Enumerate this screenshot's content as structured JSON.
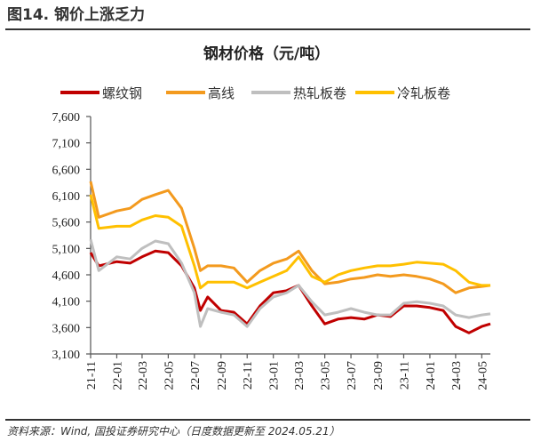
{
  "figure_title": "图14. 钢价上涨乏力",
  "source_note": "资料来源：Wind, 国投证券研究中心（日度数据更新至 2024.05.21）",
  "chart_data": {
    "type": "line",
    "title": "钢材价格（元/吨）",
    "xlabel": "",
    "ylabel": "",
    "ylim": [
      3100,
      7600
    ],
    "yticks": [
      3100,
      3600,
      4100,
      4600,
      5100,
      5600,
      6100,
      6600,
      7100,
      7600
    ],
    "ytick_labels": [
      "3,100",
      "3,600",
      "4,100",
      "4,600",
      "5,100",
      "5,600",
      "6,100",
      "6,600",
      "7,100",
      "7,600"
    ],
    "xlim": [
      "2021-11-01",
      "2024-05-21"
    ],
    "xticks": [
      "2021-11-01",
      "2022-01-01",
      "2022-03-01",
      "2022-05-01",
      "2022-07-01",
      "2022-09-01",
      "2022-11-01",
      "2023-01-01",
      "2023-03-01",
      "2023-05-01",
      "2023-07-01",
      "2023-09-01",
      "2023-11-01",
      "2024-01-01",
      "2024-03-01",
      "2024-05-01"
    ],
    "xtick_labels": [
      "21-11",
      "22-01",
      "22-03",
      "22-05",
      "22-07",
      "22-09",
      "22-11",
      "23-01",
      "23-03",
      "23-05",
      "23-07",
      "23-09",
      "23-11",
      "24-01",
      "24-03",
      "24-05"
    ],
    "grid": false,
    "legend_position": "top",
    "x": [
      "2021-11-01",
      "2021-11-20",
      "2022-01-01",
      "2022-02-01",
      "2022-03-01",
      "2022-04-01",
      "2022-05-01",
      "2022-06-01",
      "2022-07-01",
      "2022-07-15",
      "2022-08-01",
      "2022-09-01",
      "2022-10-01",
      "2022-11-01",
      "2022-12-01",
      "2023-01-01",
      "2023-02-01",
      "2023-03-01",
      "2023-04-01",
      "2023-05-01",
      "2023-06-01",
      "2023-07-01",
      "2023-08-01",
      "2023-09-01",
      "2023-10-01",
      "2023-11-01",
      "2023-12-01",
      "2024-01-01",
      "2024-02-01",
      "2024-03-01",
      "2024-04-01",
      "2024-05-01",
      "2024-05-21"
    ],
    "series": [
      {
        "name": "螺纹钢",
        "color": "#C00000",
        "values": [
          5020,
          4770,
          4850,
          4820,
          4940,
          5050,
          5020,
          4770,
          4350,
          3925,
          4180,
          3925,
          3890,
          3670,
          4010,
          4260,
          4300,
          4400,
          4010,
          3670,
          3760,
          3790,
          3760,
          3840,
          3810,
          4010,
          4010,
          3980,
          3925,
          3620,
          3500,
          3620,
          3670
        ]
      },
      {
        "name": "高线",
        "color": "#F39A1E",
        "values": [
          6370,
          5690,
          5810,
          5860,
          6030,
          6120,
          6200,
          5860,
          5100,
          4680,
          4770,
          4770,
          4730,
          4460,
          4680,
          4820,
          4900,
          5050,
          4680,
          4430,
          4460,
          4520,
          4550,
          4600,
          4570,
          4600,
          4570,
          4520,
          4430,
          4260,
          4350,
          4380,
          4400
        ]
      },
      {
        "name": "热轧板卷",
        "color": "#BFBFBF",
        "values": [
          5270,
          4680,
          4940,
          4900,
          5100,
          5240,
          5190,
          4820,
          4260,
          3620,
          3960,
          3890,
          3840,
          3620,
          3960,
          4180,
          4260,
          4400,
          4090,
          3840,
          3890,
          3960,
          3890,
          3840,
          3840,
          4060,
          4090,
          4060,
          4010,
          3840,
          3790,
          3840,
          3860
        ]
      },
      {
        "name": "冷轧板卷",
        "color": "#FFC000",
        "values": [
          6120,
          5480,
          5520,
          5520,
          5640,
          5720,
          5690,
          5520,
          4770,
          4350,
          4460,
          4460,
          4460,
          4350,
          4460,
          4570,
          4680,
          4940,
          4570,
          4460,
          4600,
          4680,
          4730,
          4770,
          4770,
          4800,
          4840,
          4820,
          4800,
          4680,
          4460,
          4400,
          4400
        ]
      }
    ]
  }
}
